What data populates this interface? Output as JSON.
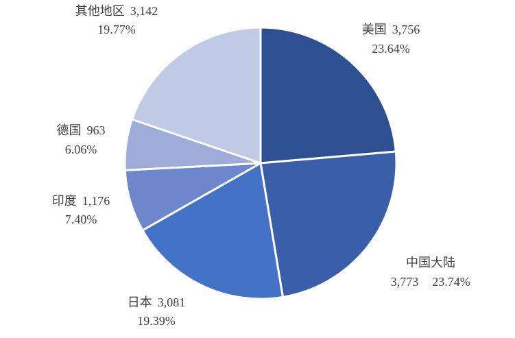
{
  "chart_data": {
    "type": "pie",
    "categories": [
      "美国",
      "中国大陆",
      "日本",
      "印度",
      "德国",
      "其他地区"
    ],
    "values": [
      3756,
      3773,
      3081,
      1176,
      963,
      3142
    ],
    "value_labels": [
      "3,756",
      "3,773",
      "3,081",
      "1,176",
      "963",
      "3,142"
    ],
    "percent_labels": [
      "23.64%",
      "23.74%",
      "19.39%",
      "7.40%",
      "6.06%",
      "19.77%"
    ],
    "colors": [
      "#2e5090",
      "#3a5fa8",
      "#4472c4",
      "#6d86cc",
      "#9dacd9",
      "#c0cae5"
    ]
  }
}
